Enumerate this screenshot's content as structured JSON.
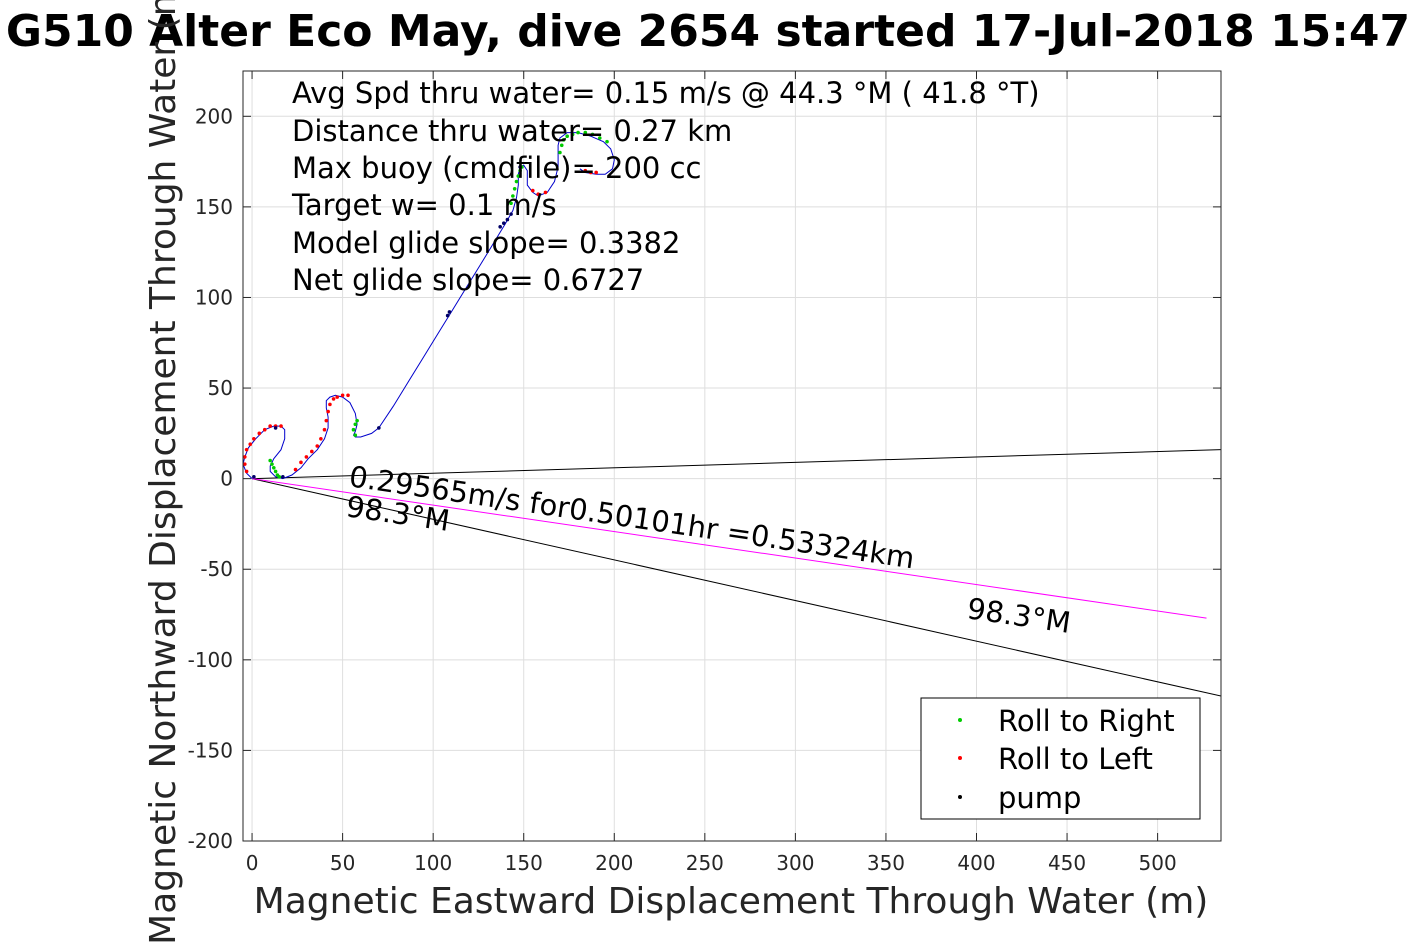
{
  "chart_data": {
    "type": "line",
    "title": "G510 Alter Eco May, dive 2654 started 17-Jul-2018 15:47",
    "xlabel": "Magnetic Eastward Displacement Through Water (m)",
    "ylabel": "Magnetic Northward Displacement Through Water (m)",
    "xlim": [
      -5,
      535
    ],
    "ylim": [
      -200,
      225
    ],
    "xticks": [
      0,
      50,
      100,
      150,
      200,
      250,
      300,
      350,
      400,
      450,
      500
    ],
    "yticks": [
      -200,
      -150,
      -100,
      -50,
      0,
      50,
      100,
      150,
      200
    ],
    "grid": true,
    "stats_text": [
      "Avg Spd thru water=  0.15 m/s @  44.3 °M ( 41.8 °T)",
      "Distance thru water=  0.27 km",
      "Max buoy (cmdfile)= 200 cc",
      "Target w= 0.1 m/s",
      "Model glide slope= 0.3382",
      "Net glide slope= 0.6727"
    ],
    "annotations": {
      "current_label": "0.29565m/s for0.50101hr =0.53324km",
      "heading_label_1": "98.3°M",
      "heading_label_2": "98.3°M"
    },
    "legend": {
      "placement": "bottom-right",
      "entries": [
        {
          "label": "Roll to Right",
          "color": "#00cc00"
        },
        {
          "label": "Roll to Left",
          "color": "#ff0000"
        },
        {
          "label": "pump",
          "color": "#000000"
        }
      ]
    },
    "track": {
      "color": "#0000cc",
      "x": [
        0,
        -3,
        -5,
        -4,
        -2,
        2,
        7,
        12,
        16,
        18,
        18,
        16,
        12,
        10,
        10,
        13,
        17,
        22,
        27,
        31,
        36,
        40,
        42,
        42,
        41,
        41,
        43,
        46,
        50,
        54,
        57,
        58,
        57,
        56,
        57,
        60,
        66,
        70,
        78,
        86,
        94,
        102,
        110,
        118,
        126,
        134,
        140,
        144,
        146,
        147,
        147,
        148,
        150,
        152,
        152,
        155,
        158,
        163,
        167,
        169,
        169,
        169,
        170,
        174,
        180,
        187,
        194,
        198,
        200,
        199,
        195,
        190,
        184,
        181
      ],
      "y": [
        0,
        3,
        8,
        12,
        17,
        22,
        27,
        29,
        29,
        27,
        22,
        16,
        11,
        7,
        4,
        1,
        0,
        2,
        6,
        11,
        16,
        22,
        28,
        34,
        39,
        43,
        45,
        46,
        45,
        42,
        36,
        30,
        26,
        24,
        23,
        23,
        25,
        28,
        40,
        53,
        66,
        79,
        92,
        105,
        118,
        131,
        141,
        148,
        155,
        162,
        168,
        172,
        173,
        170,
        162,
        158,
        156,
        158,
        164,
        172,
        179,
        184,
        188,
        191,
        191,
        189,
        186,
        182,
        176,
        171,
        168,
        168,
        169,
        171
      ]
    },
    "roll_right_points": {
      "x": [
        10,
        11,
        12,
        13,
        14,
        15,
        58,
        57,
        56,
        57,
        143,
        144,
        145,
        146,
        147,
        148,
        149,
        170,
        171,
        172,
        174,
        177,
        180,
        184,
        188,
        192,
        196
      ],
      "y": [
        10,
        8,
        6,
        4,
        2,
        1,
        32,
        30,
        27,
        24,
        152,
        156,
        160,
        164,
        167,
        170,
        172,
        180,
        184,
        187,
        189,
        190,
        191,
        191,
        190,
        188,
        186
      ]
    },
    "roll_left_points": {
      "x": [
        -3,
        -4,
        -4,
        -3,
        -1,
        1,
        4,
        7,
        10,
        13,
        16,
        24,
        27,
        30,
        33,
        36,
        38,
        40,
        41,
        42,
        43,
        45,
        47,
        50,
        53,
        155,
        158,
        162,
        184,
        187,
        190
      ],
      "y": [
        4,
        8,
        12,
        16,
        19,
        22,
        25,
        27,
        29,
        29,
        29,
        5,
        9,
        12,
        15,
        18,
        22,
        27,
        32,
        37,
        41,
        44,
        45,
        46,
        46,
        159,
        157,
        158,
        170,
        169,
        169
      ]
    },
    "pump_points": {
      "x": [
        1,
        13,
        17,
        70,
        108,
        109,
        137,
        139,
        141,
        143,
        148
      ],
      "y": [
        1,
        28,
        1,
        28,
        90,
        92,
        139,
        141,
        143,
        146,
        172
      ]
    },
    "reference_lines": [
      {
        "x": [
          0,
          535
        ],
        "y": [
          0,
          16
        ],
        "color": "#000000"
      },
      {
        "x": [
          0,
          535
        ],
        "y": [
          0,
          -120
        ],
        "color": "#000000"
      },
      {
        "x": [
          0,
          527
        ],
        "y": [
          0,
          -77
        ],
        "color": "#ff00ff"
      }
    ]
  }
}
